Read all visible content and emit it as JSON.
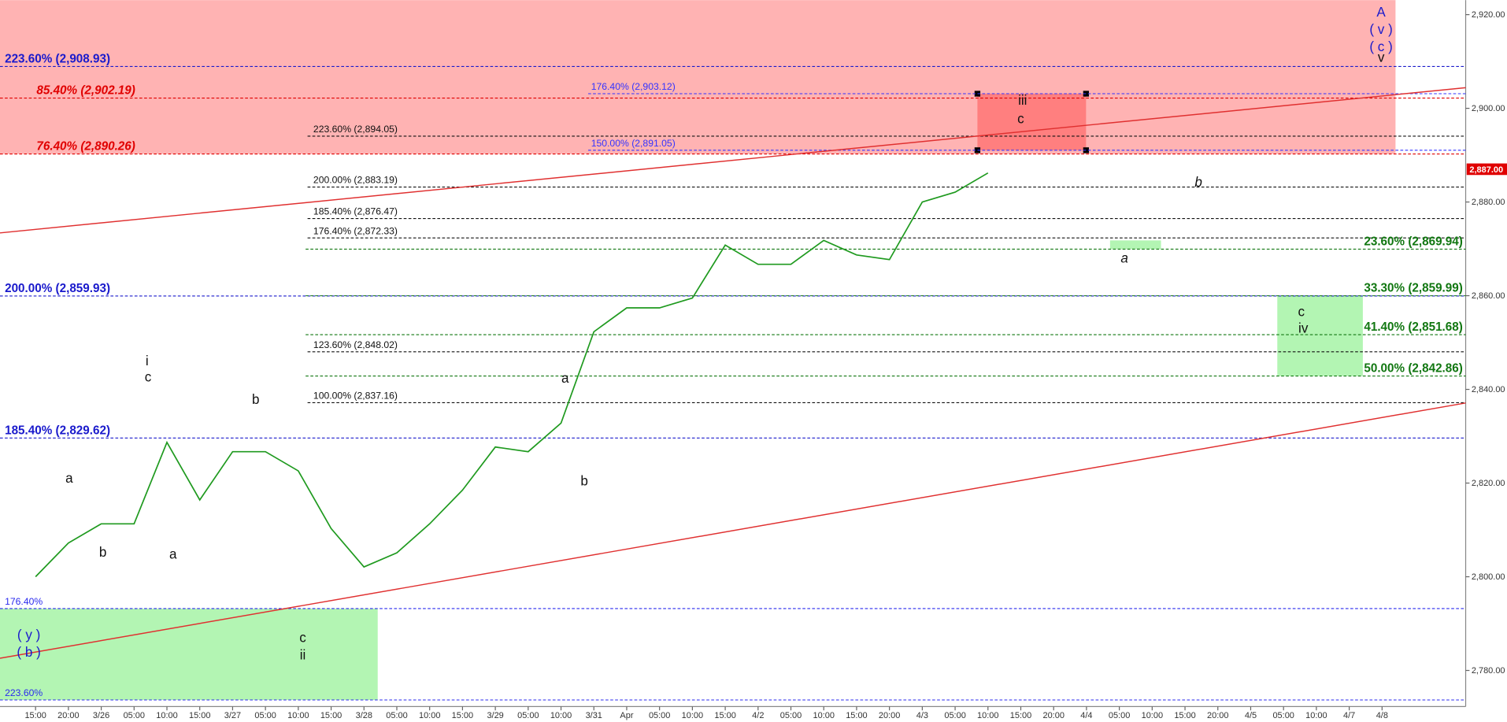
{
  "chart_data": {
    "type": "line",
    "categories": [
      "15:00",
      "20:00",
      "3/26",
      "05:00",
      "10:00",
      "15:00",
      "3/27",
      "05:00",
      "10:00",
      "15:00",
      "3/28",
      "05:00",
      "10:00",
      "15:00",
      "3/29",
      "05:00",
      "10:00",
      "3/31",
      "Apr",
      "05:00",
      "10:00",
      "15:00",
      "4/2",
      "05:00",
      "10:00",
      "15:00",
      "20:00",
      "4/3",
      "05:00",
      "10:00",
      "15:00",
      "20:00",
      "4/4",
      "05:00",
      "10:00",
      "15:00",
      "20:00",
      "4/5",
      "05:00",
      "10:00",
      "4/7",
      "4/8"
    ],
    "series": [
      {
        "color": "#1f9a1f",
        "values": [
          2800.0,
          2807.2,
          2811.3,
          2811.3,
          2828.7,
          2816.4,
          2826.7,
          2826.7,
          2822.6,
          2810.3,
          2802.1,
          2805.1,
          2811.3,
          2818.5,
          2827.7,
          2826.7,
          2832.8,
          2852.3,
          2857.4,
          2857.4,
          2859.5,
          2870.8,
          2866.7,
          2866.7,
          2871.8,
          2868.7,
          2867.7,
          2880.0,
          2882.1,
          2886.2,
          null,
          null,
          null,
          null,
          null,
          null,
          null,
          null,
          null,
          null,
          null,
          null
        ]
      }
    ],
    "ylim": [
      2772.3,
      2923.1
    ],
    "yticks": [
      {
        "value": 2780,
        "label": "2,780.00"
      },
      {
        "value": 2800,
        "label": "2,800.00"
      },
      {
        "value": 2820,
        "label": "2,820.00"
      },
      {
        "value": 2840,
        "label": "2,840.00"
      },
      {
        "value": 2860,
        "label": "2,860.00"
      },
      {
        "value": 2880,
        "label": "2,880.00"
      },
      {
        "value": 2900,
        "label": "2,900.00"
      },
      {
        "value": 2920,
        "label": "2,920.00"
      }
    ],
    "last_price": {
      "value": 2887,
      "label": "2,887.00",
      "color": "#e00000"
    },
    "zones": [
      {
        "low": 2890.26,
        "high": 2923.1,
        "color": "#ffb3b3"
      },
      {
        "low": 2891.05,
        "high": 2903.12,
        "color": "#ff7f7f"
      },
      {
        "low": 2773.7,
        "high": 2793.2,
        "color": "#b3f5b3"
      },
      {
        "low": 2842.86,
        "high": 2859.99,
        "color": "#b3f5b3"
      },
      {
        "low": 2869.94,
        "high": 2871.8,
        "color": "#b3f5b3"
      }
    ],
    "trendlines": [
      {
        "values": [
          2873.4,
          2904.4
        ],
        "color": "#e03030"
      },
      {
        "values": [
          2782.6,
          2837.1
        ],
        "color": "#e03030"
      }
    ],
    "levels": [
      {
        "label": "223.60% (2,908.93)",
        "value": 2908.93,
        "color": "#1a1acc"
      },
      {
        "label": "200.00% (2,859.93)",
        "value": 2859.93,
        "color": "#1a1acc"
      },
      {
        "label": "185.40% (2,829.62)",
        "value": 2829.62,
        "color": "#1a1acc"
      },
      {
        "label": "85.40% (2,902.19)",
        "value": 2902.19,
        "color": "#e00000"
      },
      {
        "label": "76.40% (2,890.26)",
        "value": 2890.26,
        "color": "#e00000"
      },
      {
        "label": "223.60% (2,894.05)",
        "value": 2894.05,
        "color": "#111111"
      },
      {
        "label": "200.00% (2,883.19)",
        "value": 2883.19,
        "color": "#111111"
      },
      {
        "label": "185.40% (2,876.47)",
        "value": 2876.47,
        "color": "#111111"
      },
      {
        "label": "176.40% (2,872.33)",
        "value": 2872.33,
        "color": "#111111"
      },
      {
        "label": "123.60% (2,848.02)",
        "value": 2848.02,
        "color": "#111111"
      },
      {
        "label": "100.00% (2,837.16)",
        "value": 2837.16,
        "color": "#111111"
      },
      {
        "label": "176.40% (2,903.12)",
        "value": 2903.12,
        "color": "#3333ff"
      },
      {
        "label": "150.00% (2,891.05)",
        "value": 2891.05,
        "color": "#3333ff"
      },
      {
        "label": "23.60% (2,869.94)",
        "value": 2869.94,
        "color": "#117711"
      },
      {
        "label": "33.30% (2,859.99)",
        "value": 2859.99,
        "color": "#117711"
      },
      {
        "label": "41.40% (2,851.68)",
        "value": 2851.68,
        "color": "#117711"
      },
      {
        "label": "50.00% (2,842.86)",
        "value": 2842.86,
        "color": "#117711"
      },
      {
        "label": "176.40%",
        "value": 2793.2,
        "color": "#2a2aee"
      },
      {
        "label": "223.60%",
        "value": 2773.7,
        "color": "#2a2aee"
      }
    ],
    "wave_labels": [
      "A",
      "( v )",
      "( c )",
      "v",
      "iii",
      "c",
      "b",
      "a",
      "c",
      "iv",
      "i",
      "c",
      "a",
      "b",
      "a",
      "b",
      "c",
      "ii",
      "( y )",
      "( b )",
      "a",
      "b"
    ]
  }
}
